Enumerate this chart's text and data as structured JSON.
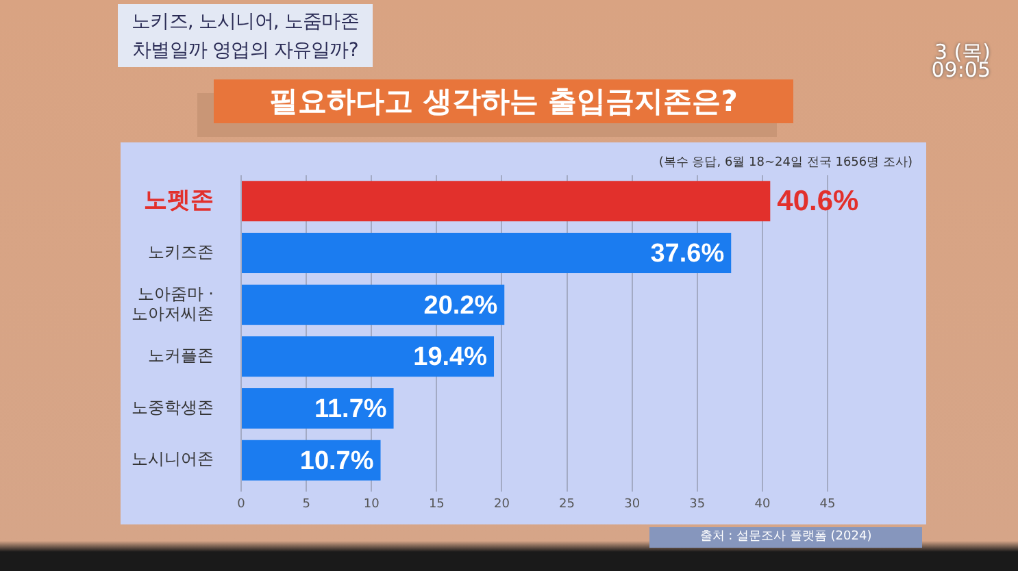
{
  "chart_data": {
    "type": "bar",
    "orientation": "horizontal",
    "title": "필요하다고 생각하는 출입금지존은?",
    "subtitle": "(복수 응답, 6월 18~24일 전국 1656명 조사)",
    "categories": [
      "노펫존",
      "노키즈존",
      "노아줌마 · 노아저씨존",
      "노커플존",
      "노중학생존",
      "노시니어존"
    ],
    "values": [
      40.6,
      37.6,
      20.2,
      19.4,
      11.7,
      10.7
    ],
    "colors": [
      "#e2302c",
      "#1b7cf0",
      "#1b7cf0",
      "#1b7cf0",
      "#1b7cf0",
      "#1b7cf0"
    ],
    "value_labels": [
      "40.6%",
      "37.6%",
      "20.2%",
      "19.4%",
      "11.7%",
      "10.7%"
    ],
    "xlim": [
      0,
      45
    ],
    "xticks": [
      0,
      5,
      10,
      15,
      20,
      25,
      30,
      35,
      40,
      45
    ],
    "grid": "x",
    "annotations": [
      "노키즈, 노시니어, 노줌마존",
      "차별일까 영업의 자유일까?",
      "3 (목)",
      "09:05",
      "출처 : 설문조사 플랫폼 (2024)"
    ]
  }
}
